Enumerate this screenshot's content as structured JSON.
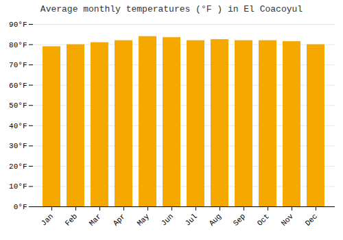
{
  "chart_data": {
    "type": "bar",
    "title": "Average monthly temperatures (°F ) in El Coacoyul",
    "categories": [
      "Jan",
      "Feb",
      "Mar",
      "Apr",
      "May",
      "Jun",
      "Jul",
      "Aug",
      "Sep",
      "Oct",
      "Nov",
      "Dec"
    ],
    "values": [
      79.0,
      80.0,
      81.0,
      82.0,
      84.0,
      83.5,
      82.0,
      82.5,
      82.0,
      82.0,
      81.5,
      80.0
    ],
    "color": "#F5A800",
    "ylim": [
      0,
      90
    ],
    "yticks": [
      {
        "value": 0,
        "label": "0°F"
      },
      {
        "value": 10,
        "label": "10°F"
      },
      {
        "value": 20,
        "label": "20°F"
      },
      {
        "value": 30,
        "label": "30°F"
      },
      {
        "value": 40,
        "label": "40°F"
      },
      {
        "value": 50,
        "label": "50°F"
      },
      {
        "value": 60,
        "label": "60°F"
      },
      {
        "value": 70,
        "label": "70°F"
      },
      {
        "value": 80,
        "label": "80°F"
      },
      {
        "value": 90,
        "label": "90°F"
      }
    ],
    "grid": true
  }
}
